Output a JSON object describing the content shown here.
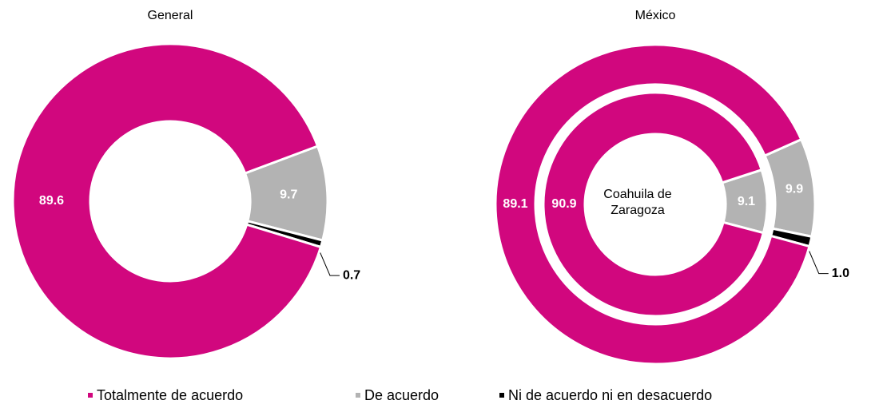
{
  "chart_data": [
    {
      "type": "pie",
      "title": "General",
      "categories": [
        "Totalmente de acuerdo",
        "De acuerdo",
        "Ni de acuerdo ni en desacuerdo"
      ],
      "colors": [
        "#d1077e",
        "#b3b3b3",
        "#000000"
      ],
      "series": [
        {
          "values": [
            89.6,
            9.7,
            0.7
          ]
        }
      ]
    },
    {
      "type": "pie",
      "title": "México",
      "series": [
        {
          "values": [
            89.1,
            9.9,
            1.0
          ],
          "value_labels": [
            "89.1",
            "9.9",
            "1.0"
          ]
        },
        {
          "name": "Coahuila de Zaragoza",
          "values": [
            90.9,
            9.1
          ]
        }
      ]
    }
  ]
}
